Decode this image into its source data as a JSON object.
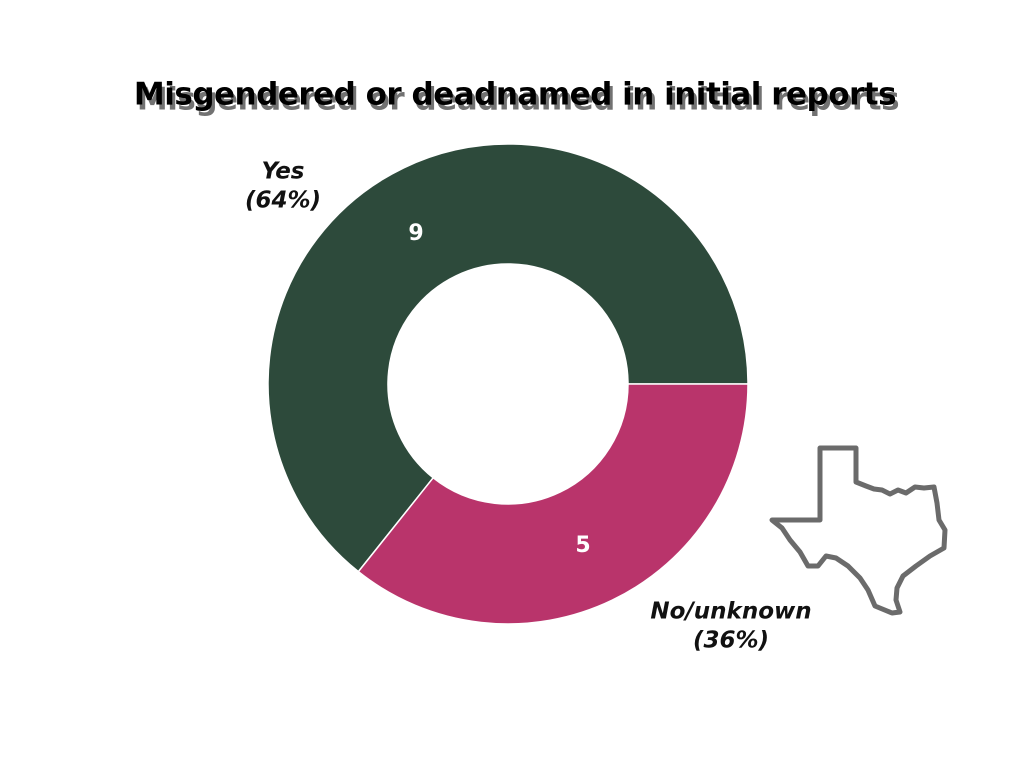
{
  "chart_data": {
    "type": "pie",
    "title": "Misgendered or deadnamed in initial reports",
    "categories": [
      "Yes",
      "No/unknown"
    ],
    "values": [
      9,
      5
    ],
    "percent_labels": [
      "(64%)",
      "(36%)"
    ],
    "colors": [
      "#2d4a3b",
      "#b9346b"
    ]
  }
}
